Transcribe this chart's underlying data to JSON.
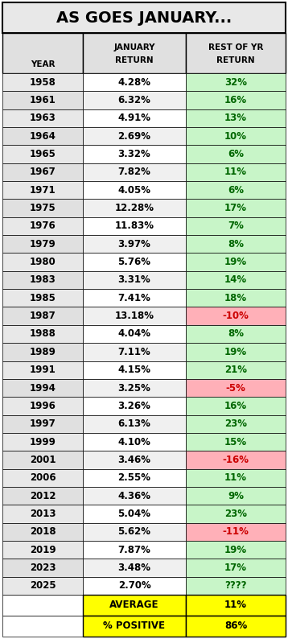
{
  "title": "AS GOES JANUARY...",
  "rows": [
    [
      "1958",
      "4.28%",
      "32%",
      "green"
    ],
    [
      "1961",
      "6.32%",
      "16%",
      "green"
    ],
    [
      "1963",
      "4.91%",
      "13%",
      "green"
    ],
    [
      "1964",
      "2.69%",
      "10%",
      "green"
    ],
    [
      "1965",
      "3.32%",
      "6%",
      "green"
    ],
    [
      "1967",
      "7.82%",
      "11%",
      "green"
    ],
    [
      "1971",
      "4.05%",
      "6%",
      "green"
    ],
    [
      "1975",
      "12.28%",
      "17%",
      "green"
    ],
    [
      "1976",
      "11.83%",
      "7%",
      "green"
    ],
    [
      "1979",
      "3.97%",
      "8%",
      "green"
    ],
    [
      "1980",
      "5.76%",
      "19%",
      "green"
    ],
    [
      "1983",
      "3.31%",
      "14%",
      "green"
    ],
    [
      "1985",
      "7.41%",
      "18%",
      "green"
    ],
    [
      "1987",
      "13.18%",
      "-10%",
      "red"
    ],
    [
      "1988",
      "4.04%",
      "8%",
      "green"
    ],
    [
      "1989",
      "7.11%",
      "19%",
      "green"
    ],
    [
      "1991",
      "4.15%",
      "21%",
      "green"
    ],
    [
      "1994",
      "3.25%",
      "-5%",
      "red"
    ],
    [
      "1996",
      "3.26%",
      "16%",
      "green"
    ],
    [
      "1997",
      "6.13%",
      "23%",
      "green"
    ],
    [
      "1999",
      "4.10%",
      "15%",
      "green"
    ],
    [
      "2001",
      "3.46%",
      "-16%",
      "red"
    ],
    [
      "2006",
      "2.55%",
      "11%",
      "green"
    ],
    [
      "2012",
      "4.36%",
      "9%",
      "green"
    ],
    [
      "2013",
      "5.04%",
      "23%",
      "green"
    ],
    [
      "2018",
      "5.62%",
      "-11%",
      "red"
    ],
    [
      "2019",
      "7.87%",
      "19%",
      "green"
    ],
    [
      "2023",
      "3.48%",
      "17%",
      "green"
    ],
    [
      "2025",
      "2.70%",
      "????",
      "green_q"
    ]
  ],
  "summary_rows": [
    [
      "",
      "AVERAGE",
      "11%"
    ],
    [
      "",
      "% POSITIVE",
      "86%"
    ]
  ],
  "bg_title": "#e8e8e8",
  "bg_header": "#e0e0e0",
  "bg_year_even": "#e8e8e8",
  "bg_year_odd": "#e0e0e0",
  "bg_jan_even": "#ffffff",
  "bg_jan_odd": "#f0f0f0",
  "bg_green": "#c8f5c8",
  "bg_red": "#ffb0b8",
  "bg_yellow": "#ffff00",
  "bg_white": "#ffffff",
  "tc_black": "#000000",
  "tc_green": "#006600",
  "tc_red": "#cc0000",
  "tc_yellow_label": "#000000",
  "border": "#000000",
  "title_fontsize": 14,
  "header_fontsize": 7.5,
  "data_fontsize": 8.5,
  "summary_fontsize": 8.5,
  "dpi": 100,
  "fig_w": 3.58,
  "fig_h": 7.94
}
